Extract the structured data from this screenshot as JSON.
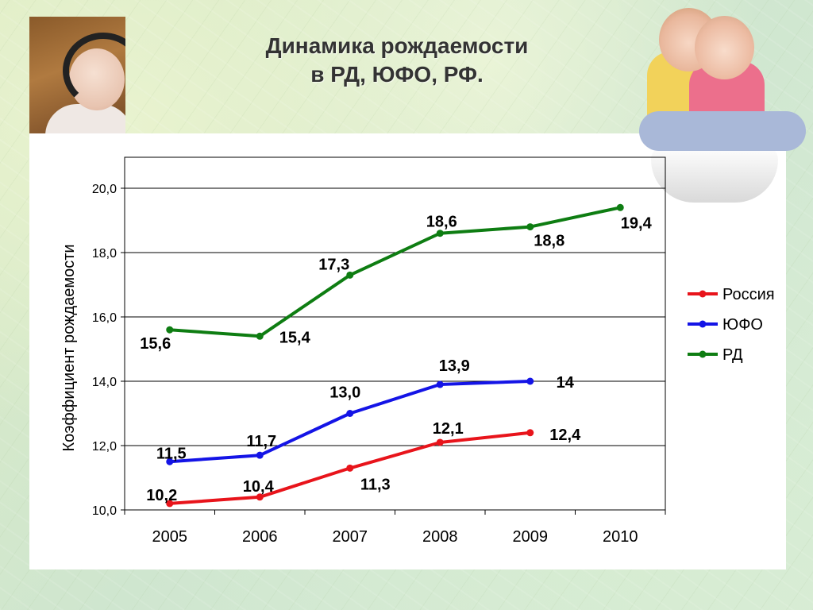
{
  "title_line1": "Динамика  рождаемости",
  "title_line2": "в РД, ЮФО, РФ.",
  "chart_data": {
    "type": "line",
    "title": "Динамика  рождаемости в РД, ЮФО, РФ.",
    "xlabel": "",
    "ylabel": "Коэффициент рождаемости",
    "categories": [
      "2005",
      "2006",
      "2007",
      "2008",
      "2009",
      "2010"
    ],
    "ylim": [
      10,
      20
    ],
    "yticks": [
      "10,0",
      "12,0",
      "14,0",
      "16,0",
      "18,0",
      "20,0"
    ],
    "grid": "horizontal",
    "legend_position": "right",
    "series": [
      {
        "name": "Россия",
        "color": "#e8141b",
        "values": [
          10.2,
          10.4,
          11.3,
          12.1,
          12.4,
          null
        ],
        "labels": [
          "10,2",
          "10,4",
          "11,3",
          "12,1",
          "12,4",
          null
        ]
      },
      {
        "name": "ЮФО",
        "color": "#1414e6",
        "values": [
          11.5,
          11.7,
          13.0,
          13.9,
          14.0,
          null
        ],
        "labels": [
          "11,5",
          "11,7",
          "13,0",
          "13,9",
          "14",
          null
        ]
      },
      {
        "name": "РД",
        "color": "#0e7d12",
        "values": [
          15.6,
          15.4,
          17.3,
          18.6,
          18.8,
          19.4
        ],
        "labels": [
          "15,6",
          "15,4",
          "17,3",
          "18,6",
          "18,8",
          "19,4"
        ]
      }
    ]
  }
}
